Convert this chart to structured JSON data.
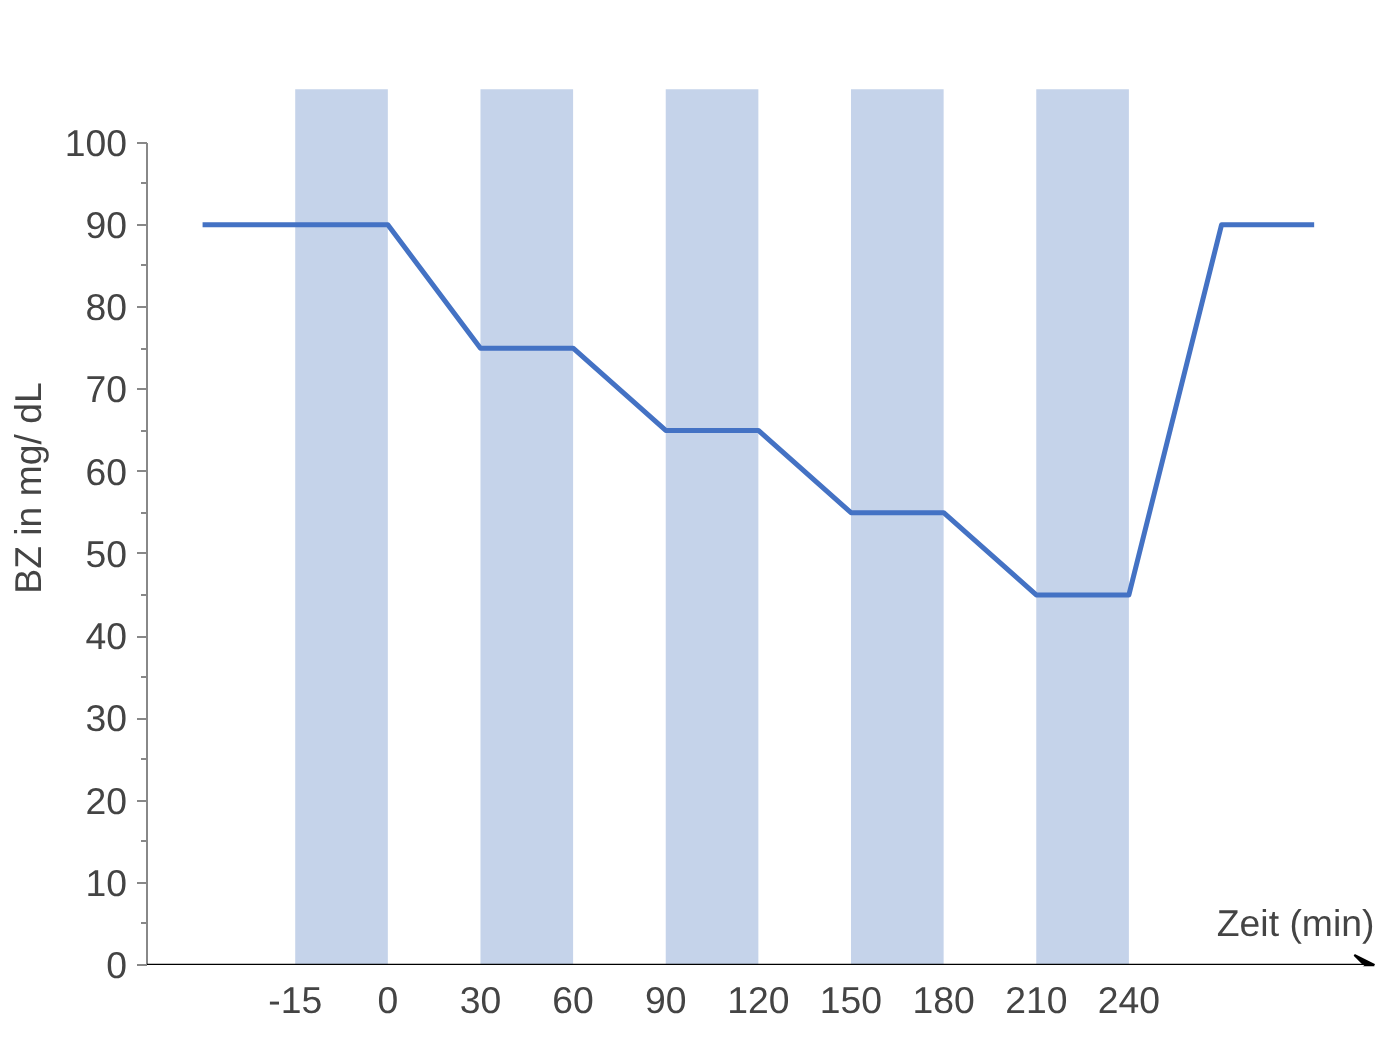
{
  "chart_data": {
    "type": "line",
    "xlabel": "Zeit (min)",
    "ylabel": "BZ in mg/ dL",
    "categories": [
      null,
      "-15",
      "0",
      "30",
      "60",
      "90",
      "120",
      "150",
      "180",
      "210",
      "240",
      null,
      null
    ],
    "series": [
      {
        "color": "#4472c4",
        "values": [
          90,
          90,
          90,
          75,
          75,
          65,
          65,
          55,
          55,
          45,
          45,
          90,
          90
        ]
      }
    ],
    "ylim": [
      0,
      100
    ],
    "yticks": [
      0,
      10,
      20,
      30,
      40,
      50,
      60,
      70,
      80,
      90,
      100
    ],
    "bands": [
      {
        "axis": "x",
        "from": "-15",
        "to": "0",
        "color": "#c5d3ea"
      },
      {
        "axis": "x",
        "from": "30",
        "to": "60",
        "color": "#c5d3ea"
      },
      {
        "axis": "x",
        "from": "90",
        "to": "120",
        "color": "#c5d3ea"
      },
      {
        "axis": "x",
        "from": "150",
        "to": "180",
        "color": "#c5d3ea"
      },
      {
        "axis": "x",
        "from": "210",
        "to": "240",
        "color": "#c5d3ea"
      }
    ],
    "grid": false,
    "marker": "none",
    "line_style": "solid"
  }
}
